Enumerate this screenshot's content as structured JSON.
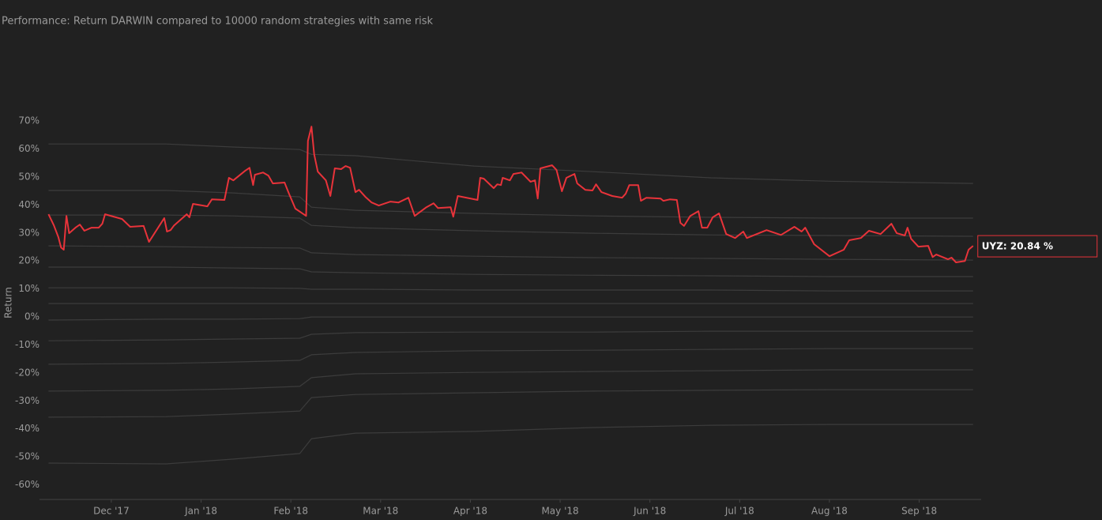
{
  "chart_data": {
    "type": "line",
    "title": "Performance: Return DARWIN compared to 10000 random strategies with same risk",
    "y_label": "Return",
    "annotation": "UYZ: 20.84 %",
    "xlim": [
      11.2,
      21.69
    ],
    "xticks": [
      {
        "value": 12,
        "label": "Dec '17"
      },
      {
        "value": 13,
        "label": "Jan '18"
      },
      {
        "value": 14,
        "label": "Feb '18"
      },
      {
        "value": 15,
        "label": "Mar '18"
      },
      {
        "value": 16,
        "label": "Apr '18"
      },
      {
        "value": 17,
        "label": "May '18"
      },
      {
        "value": 18,
        "label": "Jun '18"
      },
      {
        "value": 19,
        "label": "Jul '18"
      },
      {
        "value": 20,
        "label": "Aug '18"
      },
      {
        "value": 21,
        "label": "Sep '18"
      }
    ],
    "ylim": [
      -65.2,
      73.7
    ],
    "yticks": [
      {
        "value": 70,
        "label": "70%"
      },
      {
        "value": 60,
        "label": "60%"
      },
      {
        "value": 50,
        "label": "50%"
      },
      {
        "value": 40,
        "label": "40%"
      },
      {
        "value": 30,
        "label": "30%"
      },
      {
        "value": 20,
        "label": "20%"
      },
      {
        "value": 10,
        "label": "10%"
      },
      {
        "value": 0,
        "label": "0%"
      },
      {
        "value": -10,
        "label": "-10%"
      },
      {
        "value": -20,
        "label": "-20%"
      },
      {
        "value": -30,
        "label": "-30%"
      },
      {
        "value": -40,
        "label": "-40%"
      },
      {
        "value": -50,
        "label": "-50%"
      },
      {
        "value": -60,
        "label": "-60%"
      }
    ],
    "series": [
      {
        "color": "#3c3c3c",
        "x": [
          11.3,
          12.61,
          13.35,
          14.1,
          14.23,
          14.72,
          16.04,
          17.36,
          18.68,
          20.0,
          21.6
        ],
        "values": [
          61.8,
          61.8,
          60.7,
          59.8,
          58.1,
          57.6,
          53.9,
          51.9,
          49.7,
          48.5,
          47.7
        ]
      },
      {
        "color": "#3c3c3c",
        "x": [
          11.3,
          12.61,
          13.35,
          14.1,
          14.23,
          14.72,
          16.04,
          17.36,
          18.68,
          20.0,
          21.6
        ],
        "values": [
          45.2,
          45.2,
          44.3,
          42.9,
          39.2,
          38.1,
          37.0,
          36.1,
          35.6,
          35.3,
          35.3
        ]
      },
      {
        "color": "#3c3c3c",
        "x": [
          11.3,
          12.61,
          13.35,
          14.1,
          14.23,
          14.72,
          16.04,
          17.36,
          18.68,
          20.0,
          21.6
        ],
        "values": [
          36.4,
          36.4,
          36.1,
          35.3,
          32.7,
          31.9,
          30.8,
          29.9,
          29.3,
          29.1,
          28.8
        ]
      },
      {
        "color": "#3c3c3c",
        "x": [
          11.3,
          12.61,
          13.35,
          14.1,
          14.23,
          14.72,
          16.04,
          17.36,
          18.68,
          20.0,
          21.6
        ],
        "values": [
          25.4,
          25.1,
          24.8,
          24.6,
          22.9,
          22.3,
          21.7,
          21.2,
          20.9,
          20.6,
          20.3
        ]
      },
      {
        "color": "#3c3c3c",
        "x": [
          11.3,
          12.61,
          13.35,
          14.1,
          14.23,
          14.72,
          16.04,
          17.36,
          18.68,
          20.0,
          21.6
        ],
        "values": [
          17.8,
          17.8,
          17.5,
          17.2,
          16.1,
          15.8,
          15.2,
          14.9,
          14.7,
          14.4,
          14.4
        ]
      },
      {
        "color": "#3c3c3c",
        "x": [
          11.3,
          12.61,
          13.35,
          14.1,
          14.23,
          14.72,
          16.04,
          17.36,
          18.68,
          20.0,
          21.6
        ],
        "values": [
          10.4,
          10.4,
          10.4,
          10.2,
          9.9,
          9.9,
          9.6,
          9.6,
          9.6,
          9.3,
          9.3
        ]
      },
      {
        "color": "#3c3c3c",
        "x": [
          11.3,
          12.61,
          13.35,
          14.1,
          14.23,
          14.72,
          16.04,
          17.36,
          18.68,
          20.0,
          21.6
        ],
        "values": [
          4.8,
          4.8,
          4.8,
          4.8,
          4.8,
          4.8,
          4.8,
          4.8,
          4.8,
          4.8,
          4.8
        ]
      },
      {
        "color": "#3c3c3c",
        "x": [
          11.3,
          12.61,
          13.35,
          14.1,
          14.23,
          14.72,
          16.04,
          17.36,
          18.68,
          20.0,
          21.6
        ],
        "values": [
          -1.1,
          -0.8,
          -0.8,
          -0.6,
          0,
          0,
          0,
          0,
          0,
          0,
          0
        ]
      },
      {
        "color": "#3c3c3c",
        "x": [
          11.3,
          12.61,
          13.35,
          14.1,
          14.23,
          14.72,
          16.04,
          17.36,
          18.68,
          20.0,
          21.6
        ],
        "values": [
          -8.5,
          -8.2,
          -7.9,
          -7.6,
          -6.2,
          -5.6,
          -5.4,
          -5.4,
          -5.1,
          -5.1,
          -5.1
        ]
      },
      {
        "color": "#3c3c3c",
        "x": [
          11.3,
          12.61,
          13.35,
          14.1,
          14.23,
          14.72,
          16.04,
          17.36,
          18.68,
          20.0,
          21.6
        ],
        "values": [
          -16.9,
          -16.6,
          -16.1,
          -15.5,
          -13.5,
          -12.7,
          -12.1,
          -11.9,
          -11.6,
          -11.3,
          -11.3
        ]
      },
      {
        "color": "#3c3c3c",
        "x": [
          11.3,
          12.61,
          13.35,
          14.1,
          14.23,
          14.72,
          16.04,
          17.36,
          18.68,
          20.0,
          21.6
        ],
        "values": [
          -26.5,
          -26.2,
          -25.7,
          -24.8,
          -21.7,
          -20.3,
          -19.8,
          -19.5,
          -19.2,
          -18.9,
          -18.9
        ]
      },
      {
        "color": "#3c3c3c",
        "x": [
          11.3,
          12.61,
          13.35,
          14.1,
          14.23,
          14.72,
          16.04,
          17.36,
          18.68,
          20.0,
          21.6
        ],
        "values": [
          -35.8,
          -35.6,
          -34.7,
          -33.6,
          -28.8,
          -27.7,
          -27.1,
          -26.5,
          -26.2,
          -26.0,
          -26.0
        ]
      },
      {
        "color": "#3c3c3c",
        "x": [
          11.3,
          12.61,
          13.35,
          14.1,
          14.23,
          14.72,
          16.04,
          17.36,
          18.68,
          20.0,
          21.6
        ],
        "values": [
          -52.2,
          -52.5,
          -50.8,
          -48.8,
          -43.5,
          -41.5,
          -40.9,
          -39.5,
          -38.7,
          -38.4,
          -38.4
        ]
      },
      {
        "color": "#e8333a",
        "x": [
          11.3,
          11.36,
          11.41,
          11.44,
          11.47,
          11.5,
          11.53,
          11.6,
          11.65,
          11.7,
          11.78,
          11.86,
          11.9,
          11.93,
          12.12,
          12.21,
          12.36,
          12.42,
          12.59,
          12.62,
          12.66,
          12.7,
          12.84,
          12.87,
          12.91,
          13.07,
          13.12,
          13.26,
          13.31,
          13.36,
          13.49,
          13.54,
          13.58,
          13.6,
          13.69,
          13.75,
          13.8,
          13.93,
          13.98,
          14.05,
          14.17,
          14.19,
          14.23,
          14.26,
          14.3,
          14.39,
          14.44,
          14.49,
          14.56,
          14.61,
          14.66,
          14.72,
          14.76,
          14.83,
          14.9,
          14.98,
          15.11,
          15.2,
          15.31,
          15.38,
          15.51,
          15.59,
          15.64,
          15.78,
          15.81,
          15.86,
          16.08,
          16.11,
          16.15,
          16.26,
          16.3,
          16.34,
          16.36,
          16.44,
          16.48,
          16.57,
          16.67,
          16.72,
          16.75,
          16.78,
          16.91,
          16.96,
          17.02,
          17.07,
          17.16,
          17.19,
          17.28,
          17.36,
          17.4,
          17.46,
          17.58,
          17.69,
          17.73,
          17.77,
          17.87,
          17.9,
          17.96,
          18.12,
          18.15,
          18.22,
          18.3,
          18.34,
          18.38,
          18.45,
          18.54,
          18.58,
          18.64,
          18.7,
          18.77,
          18.85,
          18.95,
          19.04,
          19.08,
          19.3,
          19.46,
          19.61,
          19.69,
          19.73,
          19.83,
          20.0,
          20.16,
          20.22,
          20.35,
          20.44,
          20.57,
          20.69,
          20.75,
          20.84,
          20.87,
          20.91,
          20.99,
          21.1,
          21.15,
          21.19,
          21.32,
          21.36,
          21.41,
          21.51,
          21.55,
          21.6
        ],
        "values": [
          36.7,
          32.7,
          28.5,
          24.8,
          24.0,
          36.1,
          29.9,
          31.9,
          33.0,
          30.8,
          31.9,
          31.9,
          33.3,
          36.7,
          35.0,
          32.2,
          32.5,
          26.8,
          35.3,
          30.5,
          31.0,
          32.7,
          36.7,
          35.6,
          40.4,
          39.5,
          42.0,
          41.8,
          49.7,
          48.8,
          52.2,
          53.3,
          47.1,
          50.8,
          51.6,
          50.5,
          47.7,
          48.0,
          44.0,
          38.7,
          36.1,
          62.9,
          68.0,
          58.1,
          51.9,
          48.8,
          43.2,
          53.1,
          52.8,
          53.9,
          53.3,
          44.6,
          45.4,
          42.9,
          40.9,
          39.8,
          41.2,
          40.9,
          42.6,
          36.1,
          39.2,
          40.6,
          38.9,
          39.2,
          35.8,
          43.2,
          41.8,
          49.7,
          49.4,
          46.0,
          47.4,
          47.1,
          49.7,
          48.8,
          51.1,
          51.6,
          48.3,
          48.8,
          42.3,
          53.1,
          54.2,
          52.5,
          44.9,
          49.7,
          51.1,
          47.7,
          45.4,
          45.2,
          47.4,
          44.6,
          43.2,
          42.6,
          44.0,
          47.1,
          47.1,
          41.5,
          42.6,
          42.3,
          41.5,
          42.0,
          41.8,
          33.6,
          32.5,
          36.1,
          37.8,
          31.9,
          31.9,
          35.6,
          37.0,
          29.6,
          28.2,
          30.5,
          28.2,
          31.0,
          29.3,
          32.2,
          30.5,
          31.9,
          26.0,
          21.7,
          24.0,
          27.4,
          28.2,
          30.8,
          29.6,
          33.3,
          29.9,
          29.1,
          31.9,
          27.9,
          25.1,
          25.4,
          21.4,
          22.3,
          20.6,
          21.2,
          19.5,
          20.0,
          24.0,
          25.4
        ]
      }
    ]
  }
}
